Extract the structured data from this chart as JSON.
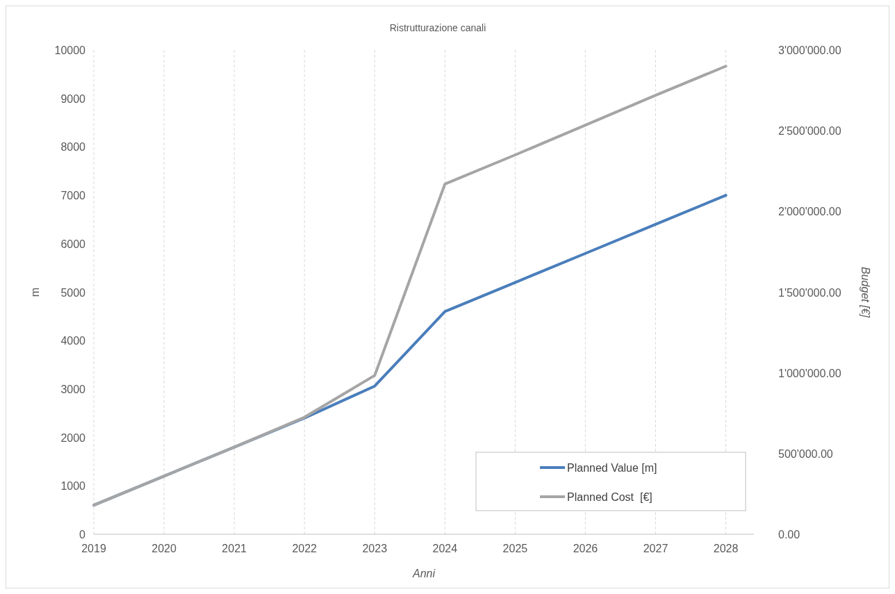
{
  "chart_data": {
    "type": "line",
    "title": "Ristrutturazione canali",
    "xlabel": "Anni",
    "ylabel": "m",
    "y2label": "Budget [€]",
    "x": [
      2019,
      2020,
      2021,
      2022,
      2023,
      2024,
      2025,
      2026,
      2027,
      2028
    ],
    "series": [
      {
        "name": "Planned Value [m]",
        "color": "#4a7ebb",
        "values": [
          600,
          1200,
          1800,
          2400,
          3060,
          4600,
          5200,
          5800,
          6400,
          7000
        ]
      },
      {
        "name": "Planned Cost  [€]",
        "color": "#a5a5a5",
        "axis": "y2",
        "values": [
          180000,
          360000,
          540000,
          725000,
          984000,
          2170000,
          2350000,
          2535000,
          2720000,
          2900000
        ]
      }
    ],
    "xlim": [
      2019,
      2028.4
    ],
    "xticks": [
      2019,
      2020,
      2021,
      2022,
      2023,
      2024,
      2025,
      2026,
      2027,
      2028
    ],
    "ylim": [
      0,
      10000
    ],
    "yticks": [
      0,
      1000,
      2000,
      3000,
      4000,
      5000,
      6000,
      7000,
      8000,
      9000,
      10000
    ],
    "y2lim": [
      0,
      3000000
    ],
    "y2ticks": [
      {
        "value": 0,
        "label": "0.00"
      },
      {
        "value": 500000,
        "label": "500'000.00"
      },
      {
        "value": 1000000,
        "label": "1'000'000.00"
      },
      {
        "value": 1500000,
        "label": "1'500'000.00"
      },
      {
        "value": 2000000,
        "label": "2'000'000.00"
      },
      {
        "value": 2500000,
        "label": "2'500'000.00"
      },
      {
        "value": 3000000,
        "label": "3'000'000.00"
      }
    ],
    "grid": "x",
    "legend": "bottom right",
    "marker": "none",
    "line_style": "solid"
  }
}
